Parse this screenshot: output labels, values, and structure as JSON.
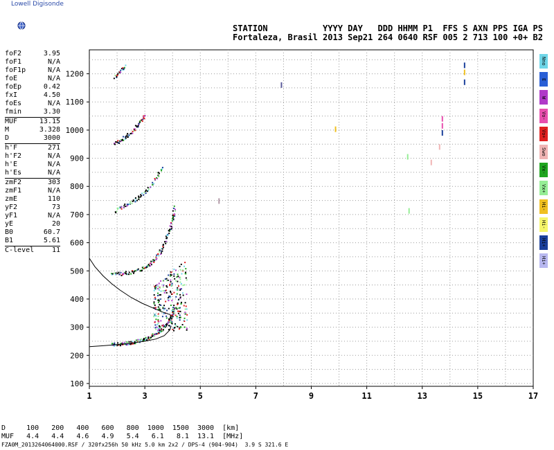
{
  "logo": {
    "text": "Lowell Digisonde",
    "icon": "globe-icon"
  },
  "header": {
    "line1": "STATION           YYYY DAY   DDD HHMM P1  FFS S AXN PPS IGA PS",
    "line2": "Fortaleza, Brasil 2013 Sep21 264 0640 RSF 005 2 713 100 +0+ B2"
  },
  "params": [
    {
      "key": "foF2",
      "value": "3.95",
      "sep_after": false
    },
    {
      "key": "foF1",
      "value": "N/A",
      "sep_after": false
    },
    {
      "key": "foF1p",
      "value": "N/A",
      "sep_after": false
    },
    {
      "key": "foE",
      "value": "N/A",
      "sep_after": false
    },
    {
      "key": "foEp",
      "value": "0.42",
      "sep_after": false
    },
    {
      "key": "fxI",
      "value": "4.50",
      "sep_after": false
    },
    {
      "key": "foEs",
      "value": "N/A",
      "sep_after": false
    },
    {
      "key": "fmin",
      "value": "3.30",
      "sep_after": true
    },
    {
      "key": "MUF",
      "value": "13.15",
      "sep_after": false
    },
    {
      "key": "M",
      "value": "3.328",
      "sep_after": false
    },
    {
      "key": "D",
      "value": "3000",
      "sep_after": true
    },
    {
      "key": "h'F",
      "value": "271",
      "sep_after": false
    },
    {
      "key": "h'F2",
      "value": "N/A",
      "sep_after": false
    },
    {
      "key": "h'E",
      "value": "N/A",
      "sep_after": false
    },
    {
      "key": "h'Es",
      "value": "N/A",
      "sep_after": true
    },
    {
      "key": "zmF2",
      "value": "303",
      "sep_after": false
    },
    {
      "key": "zmF1",
      "value": "N/A",
      "sep_after": false
    },
    {
      "key": "zmE",
      "value": "110",
      "sep_after": false
    },
    {
      "key": "yF2",
      "value": "73",
      "sep_after": false
    },
    {
      "key": "yF1",
      "value": "N/A",
      "sep_after": false
    },
    {
      "key": "yE",
      "value": "20",
      "sep_after": false
    },
    {
      "key": "B0",
      "value": "60.7",
      "sep_after": false
    },
    {
      "key": "B1",
      "value": "5.61",
      "sep_after": true
    },
    {
      "key": "C-level",
      "value": "11",
      "sep_after": false
    }
  ],
  "legend": [
    {
      "label": "Nno",
      "color": "#6fd6e8"
    },
    {
      "label": "E",
      "color": "#2a5fd6"
    },
    {
      "label": "W",
      "color": "#b03ac8"
    },
    {
      "label": "Vo-",
      "color": "#e84fae"
    },
    {
      "label": "Vo+",
      "color": "#e02020"
    },
    {
      "label": "Swo",
      "color": "#f0b4b4"
    },
    {
      "label": "Vx-",
      "color": "#1fa51f"
    },
    {
      "label": "Vx+",
      "color": "#96ee96"
    },
    {
      "label": "Hi- Sse",
      "color": "#f0c020"
    },
    {
      "label": "Hi- Nwe",
      "color": "#f5f56a"
    },
    {
      "label": "Hi+ Nno",
      "color": "#1a3f9a"
    },
    {
      "label": "Hi+",
      "color": "#b8b8f0"
    }
  ],
  "bottom": {
    "line1": "D     100   200   400   600   800  1000  1500  3000  [km]",
    "line2": "MUF   4.4   4.4   4.6   4.9   5.4   6.1   8.1  13.1  [MHz]",
    "line3": "FZA0M_2013264064000.RSF / 320fx256h 50 kHz 5.0 km 2x2 / DPS-4 (904-904)  3.9 S 321.6 E"
  },
  "chart_data": {
    "type": "scatter",
    "title": "",
    "xlabel": "",
    "ylabel": "",
    "xlim": [
      1,
      17
    ],
    "ylim": [
      90,
      1285
    ],
    "xticks": [
      1,
      3,
      5,
      7,
      9,
      11,
      13,
      15,
      17
    ],
    "yticks": [
      100,
      200,
      300,
      400,
      500,
      600,
      700,
      800,
      900,
      1000,
      1100,
      1200
    ],
    "grid": true,
    "traces": [
      {
        "name": "F-trace 1st hop",
        "color": "#1a3f9a",
        "points": [
          [
            1.8,
            240
          ],
          [
            2.0,
            241
          ],
          [
            2.2,
            243
          ],
          [
            2.4,
            246
          ],
          [
            2.6,
            249
          ],
          [
            2.8,
            254
          ],
          [
            3.0,
            260
          ],
          [
            3.2,
            268
          ],
          [
            3.4,
            280
          ],
          [
            3.6,
            293
          ],
          [
            3.75,
            310
          ],
          [
            3.9,
            330
          ],
          [
            4.0,
            352
          ],
          [
            4.1,
            375
          ]
        ]
      },
      {
        "name": "F-trace 2nd hop",
        "color": "#1a3f9a",
        "points": [
          [
            1.8,
            492
          ],
          [
            2.1,
            492
          ],
          [
            2.4,
            495
          ],
          [
            2.7,
            502
          ],
          [
            3.0,
            515
          ],
          [
            3.2,
            530
          ],
          [
            3.4,
            550
          ],
          [
            3.6,
            580
          ],
          [
            3.75,
            615
          ],
          [
            3.9,
            650
          ],
          [
            4.0,
            690
          ],
          [
            4.05,
            730
          ]
        ]
      },
      {
        "name": "F-trace 3rd hop",
        "color": "#1a3f9a",
        "points": [
          [
            1.9,
            715
          ],
          [
            2.2,
            730
          ],
          [
            2.5,
            745
          ],
          [
            2.8,
            765
          ],
          [
            3.1,
            790
          ],
          [
            3.4,
            830
          ],
          [
            3.6,
            870
          ]
        ]
      },
      {
        "name": "F-trace 4th hop",
        "color": "#1a3f9a",
        "points": [
          [
            1.9,
            952
          ],
          [
            2.1,
            965
          ],
          [
            2.3,
            980
          ],
          [
            2.6,
            1000
          ],
          [
            2.8,
            1030
          ],
          [
            3.0,
            1055
          ]
        ]
      },
      {
        "name": "F-trace 5th hop",
        "color": "#1a3f9a",
        "points": [
          [
            1.9,
            1190
          ],
          [
            2.1,
            1210
          ],
          [
            2.3,
            1230
          ]
        ]
      }
    ],
    "spots": [
      {
        "color": "#5a5a9a",
        "points": [
          [
            7.9,
            1160
          ]
        ]
      },
      {
        "color": "#b39aa8",
        "points": [
          [
            5.65,
            748
          ]
        ]
      },
      {
        "color": "#f0c020",
        "points": [
          [
            9.85,
            1003
          ],
          [
            14.5,
            1205
          ]
        ]
      },
      {
        "color": "#e84fae",
        "points": [
          [
            13.7,
            1040
          ],
          [
            13.7,
            1015
          ]
        ]
      },
      {
        "color": "#1a3f9a",
        "points": [
          [
            14.5,
            1230
          ],
          [
            14.5,
            1170
          ],
          [
            13.7,
            990
          ]
        ]
      },
      {
        "color": "#96ee96",
        "points": [
          [
            12.5,
            713
          ],
          [
            12.45,
            905
          ]
        ]
      },
      {
        "color": "#f0b4b4",
        "points": [
          [
            13.3,
            885
          ],
          [
            13.6,
            940
          ]
        ]
      }
    ],
    "profile": {
      "name": "Electron density profile",
      "color": "#000000",
      "points": [
        [
          1.0,
          545
        ],
        [
          1.2,
          515
        ],
        [
          1.5,
          482
        ],
        [
          1.8,
          455
        ],
        [
          2.1,
          432
        ],
        [
          2.5,
          406
        ],
        [
          2.9,
          385
        ],
        [
          3.3,
          368
        ],
        [
          3.6,
          355
        ],
        [
          3.9,
          345
        ],
        [
          3.95,
          340
        ]
      ]
    },
    "trace_fit": {
      "name": "Model trace",
      "color": "#000000",
      "points": [
        [
          1.0,
          231
        ],
        [
          1.5,
          234
        ],
        [
          2.0,
          238
        ],
        [
          2.5,
          243
        ],
        [
          3.0,
          250
        ],
        [
          3.4,
          258
        ],
        [
          3.7,
          270
        ],
        [
          3.9,
          290
        ],
        [
          3.95,
          305
        ]
      ]
    }
  }
}
